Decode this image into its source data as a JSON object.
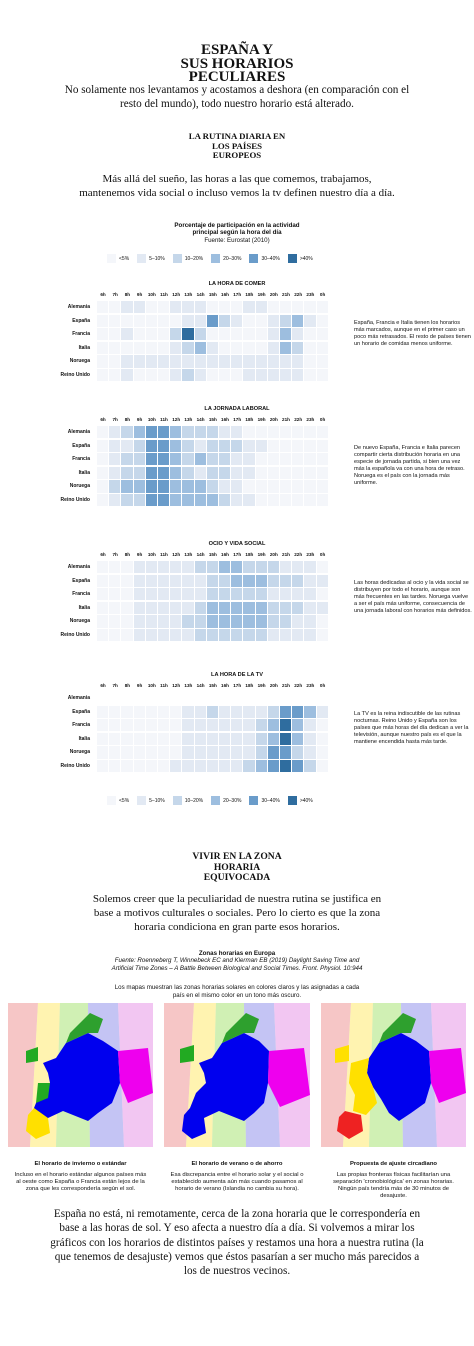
{
  "title": {
    "line1": "ESPAÑA Y",
    "line2": "SUS HORARIOS",
    "line3": "PECULIARES"
  },
  "intro": "No solamente nos levantamos y acostamos a deshora (en comparación con el resto del mundo), todo nuestro horario está alterado.",
  "section1": {
    "line1": "LA RUTINA DIARIA EN",
    "line2": "LOS PAÍSES",
    "line3": "EUROPEOS"
  },
  "para1": "Más allá del sueño, las horas a las que comemos, trabajamos, mantenemos vida social o incluso vemos la tv definen nuestro día a día.",
  "chart_caption": {
    "line1": "Porcentaje de participación en la actividad",
    "line2": "principal según la hora del día",
    "source": "Fuente: Eurostat (2010)"
  },
  "legend": {
    "labels": [
      "<5%",
      "5–10%",
      "10–20%",
      "20–30%",
      "30–40%",
      ">40%"
    ],
    "colors": [
      "#f4f6fa",
      "#e2e9f3",
      "#c5d7ea",
      "#9dbedf",
      "#6a9cca",
      "#2f6d9f"
    ]
  },
  "chart_data": [
    {
      "type": "heatmap",
      "title": "LA HORA DE COMER",
      "x": [
        "6h",
        "7h",
        "8h",
        "9h",
        "10h",
        "11h",
        "12h",
        "13h",
        "14h",
        "15h",
        "16h",
        "17h",
        "18h",
        "19h",
        "20h",
        "21h",
        "22h",
        "23h",
        "0h"
      ],
      "y": [
        "Alemania",
        "España",
        "Francia",
        "Italia",
        "Noruega",
        "Reino Unido"
      ],
      "bins": [
        "<5%",
        "5–10%",
        "10–20%",
        "20–30%",
        "30–40%",
        ">40%"
      ],
      "values": [
        [
          0,
          0,
          1,
          1,
          0,
          0,
          1,
          1,
          1,
          0,
          0,
          0,
          1,
          1,
          0,
          0,
          0,
          0,
          0
        ],
        [
          0,
          0,
          0,
          0,
          0,
          0,
          0,
          1,
          1,
          4,
          2,
          1,
          0,
          0,
          1,
          2,
          3,
          1,
          0
        ],
        [
          0,
          0,
          1,
          0,
          0,
          0,
          2,
          5,
          2,
          0,
          0,
          0,
          0,
          0,
          1,
          3,
          1,
          0,
          0
        ],
        [
          0,
          0,
          0,
          0,
          0,
          0,
          1,
          2,
          3,
          1,
          0,
          0,
          0,
          0,
          1,
          3,
          2,
          0,
          0
        ],
        [
          0,
          0,
          1,
          1,
          1,
          1,
          1,
          1,
          1,
          1,
          1,
          1,
          1,
          1,
          1,
          1,
          1,
          0,
          0
        ],
        [
          0,
          0,
          1,
          0,
          0,
          0,
          1,
          2,
          1,
          0,
          0,
          0,
          1,
          1,
          1,
          1,
          1,
          0,
          0
        ]
      ],
      "note": "España, Francia e Italia tienen los horarios más marcados, aunque en el primer caso un poco más retrasados. El resto de países tienen un horario de comidas menos uniforme."
    },
    {
      "type": "heatmap",
      "title": "LA JORNADA LABORAL",
      "x": [
        "6h",
        "7h",
        "8h",
        "9h",
        "10h",
        "11h",
        "12h",
        "13h",
        "14h",
        "15h",
        "16h",
        "17h",
        "18h",
        "19h",
        "20h",
        "21h",
        "22h",
        "23h",
        "0h"
      ],
      "y": [
        "Alemania",
        "España",
        "Francia",
        "Italia",
        "Noruega",
        "Reino Unido"
      ],
      "bins": [
        "<5%",
        "5–10%",
        "10–20%",
        "20–30%",
        "30–40%",
        ">40%"
      ],
      "values": [
        [
          0,
          1,
          2,
          3,
          4,
          4,
          3,
          2,
          2,
          2,
          1,
          1,
          0,
          0,
          0,
          0,
          0,
          0,
          0
        ],
        [
          0,
          1,
          1,
          2,
          4,
          4,
          3,
          2,
          1,
          2,
          2,
          2,
          1,
          1,
          0,
          0,
          0,
          0,
          0
        ],
        [
          0,
          1,
          2,
          2,
          4,
          4,
          3,
          2,
          3,
          2,
          2,
          1,
          1,
          0,
          0,
          0,
          0,
          0,
          0
        ],
        [
          0,
          1,
          2,
          2,
          4,
          4,
          3,
          2,
          1,
          2,
          2,
          1,
          1,
          0,
          0,
          0,
          0,
          0,
          0
        ],
        [
          0,
          2,
          3,
          3,
          4,
          4,
          3,
          3,
          3,
          2,
          1,
          1,
          0,
          0,
          0,
          0,
          0,
          0,
          0
        ],
        [
          0,
          1,
          2,
          2,
          4,
          4,
          3,
          3,
          3,
          3,
          2,
          1,
          1,
          0,
          0,
          0,
          0,
          0,
          0
        ]
      ],
      "note": "De nuevo España, Francia e Italia parecen compartir cierta distribución horaria en una especie de jornada partida, si bien una vez más la española va con una hora de retraso. Noruega es el país con la jornada más uniforme."
    },
    {
      "type": "heatmap",
      "title": "OCIO Y VIDA SOCIAL",
      "x": [
        "6h",
        "7h",
        "8h",
        "9h",
        "10h",
        "11h",
        "12h",
        "13h",
        "14h",
        "15h",
        "16h",
        "17h",
        "18h",
        "19h",
        "20h",
        "21h",
        "22h",
        "23h",
        "0h"
      ],
      "y": [
        "Alemania",
        "España",
        "Francia",
        "Italia",
        "Noruega",
        "Reino Unido"
      ],
      "bins": [
        "<5%",
        "5–10%",
        "10–20%",
        "20–30%",
        "30–40%",
        ">40%"
      ],
      "values": [
        [
          0,
          0,
          0,
          1,
          1,
          1,
          1,
          1,
          2,
          2,
          3,
          3,
          2,
          2,
          2,
          1,
          1,
          1,
          0
        ],
        [
          0,
          0,
          0,
          1,
          1,
          1,
          1,
          1,
          1,
          2,
          2,
          3,
          3,
          3,
          2,
          2,
          2,
          1,
          1
        ],
        [
          0,
          0,
          0,
          1,
          1,
          1,
          1,
          1,
          1,
          2,
          2,
          2,
          2,
          2,
          1,
          1,
          1,
          1,
          0
        ],
        [
          0,
          0,
          0,
          1,
          1,
          1,
          1,
          1,
          2,
          3,
          3,
          3,
          3,
          3,
          2,
          2,
          2,
          1,
          1
        ],
        [
          0,
          0,
          0,
          1,
          1,
          1,
          1,
          2,
          2,
          3,
          3,
          3,
          3,
          3,
          2,
          2,
          1,
          1,
          0
        ],
        [
          0,
          0,
          0,
          1,
          1,
          1,
          1,
          1,
          2,
          2,
          2,
          2,
          2,
          2,
          1,
          1,
          1,
          1,
          0
        ]
      ],
      "note": "Las horas dedicadas al ocio y la vida social se distribuyen por todo el horario, aunque son más frecuentes en las tardes. Noruega vuelve a ser el país más uniforme, consecuencia de una jornada laboral con horarios más definidos."
    },
    {
      "type": "heatmap",
      "title": "LA HORA DE LA TV",
      "x": [
        "6h",
        "7h",
        "8h",
        "9h",
        "10h",
        "11h",
        "12h",
        "13h",
        "14h",
        "15h",
        "16h",
        "17h",
        "18h",
        "19h",
        "20h",
        "21h",
        "22h",
        "23h",
        "0h"
      ],
      "y": [
        "Alemania",
        "España",
        "Francia",
        "Italia",
        "Noruega",
        "Reino Unido"
      ],
      "bins": [
        "<5%",
        "5–10%",
        "10–20%",
        "20–30%",
        "30–40%",
        ">40%"
      ],
      "values": [
        [
          0,
          0,
          0,
          0,
          0,
          0,
          0,
          0,
          0,
          0,
          0,
          0,
          0,
          0,
          0,
          0,
          0,
          0,
          0
        ],
        [
          0,
          0,
          0,
          0,
          0,
          0,
          0,
          1,
          1,
          2,
          1,
          1,
          1,
          1,
          2,
          4,
          4,
          3,
          1
        ],
        [
          0,
          0,
          0,
          0,
          0,
          0,
          0,
          1,
          1,
          1,
          1,
          1,
          1,
          2,
          3,
          5,
          3,
          1,
          0
        ],
        [
          0,
          0,
          0,
          0,
          0,
          0,
          0,
          1,
          1,
          1,
          1,
          1,
          1,
          2,
          3,
          5,
          3,
          1,
          0
        ],
        [
          0,
          0,
          0,
          0,
          0,
          0,
          0,
          1,
          1,
          1,
          1,
          1,
          1,
          2,
          4,
          4,
          2,
          1,
          0
        ],
        [
          0,
          0,
          0,
          0,
          0,
          0,
          1,
          1,
          1,
          1,
          1,
          1,
          2,
          3,
          4,
          5,
          4,
          2,
          0
        ]
      ],
      "note": "La TV es la reina indiscutible de las rutinas nocturnas. Reino Unido y España son los países que más horas del día dedican a ver la televisión, aunque nuestro país es el que la mantiene encendida hasta más tarde."
    }
  ],
  "section2": {
    "line1": "VIVIR EN LA ZONA",
    "line2": "HORARIA",
    "line3": "EQUIVOCADA"
  },
  "para2": "Solemos creer que la peculiaridad de nuestra rutina se justifica en base a motivos culturales o sociales. Pero lo cierto es que la zona horaria condiciona en gran parte esos horarios.",
  "maps_caption": {
    "title": "Zonas horarias en Europa",
    "source": "Fuente: Roenneberg T, Winnebeck EC and Klerman EB (2019) Daylight Saving Time and Artificial Time Zones – A Battle Between Biological and Social Times. Front. Physiol. 10:944",
    "desc": "Los mapas muestran las zonas horarias solares en colores claros y las asignadas a cada país en el mismo color en un tono más oscuro."
  },
  "maps": [
    {
      "title": "El horario de invierno o estándar",
      "text": "Incluso en el horario estándar algunos países más al oeste como España o Francia están lejos de la zona que les correspondería según el sol."
    },
    {
      "title": "El horario de verano o de ahorro",
      "text": "Esa discrepancia entre el horario solar y el social o establecido aumenta aún más cuando pasamos al horario de verano (Islandia no cambia su hora)."
    },
    {
      "title": "Propuesta de ajuste circadiano",
      "text": "Las propias fronteras físicas facilitarían una separación 'cronobiológica' en zonas horarias. Ningún país tendría más de 30 minutos de desajuste."
    }
  ],
  "closing": "España no está, ni remotamente, cerca de la zona horaria que le correspondería en base a las horas de sol. Y eso afecta a nuestro día a día. Si volvemos a mirar los gráficos con los horarios de distintos países y restamos una hora a nuestra rutina (la que tenemos de desajuste) vemos que éstos pasarían a ser mucho más parecidos a los de nuestros vecinos."
}
